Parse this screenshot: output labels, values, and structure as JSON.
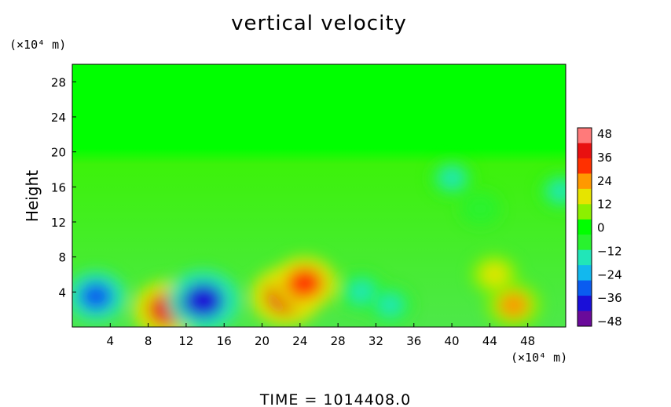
{
  "chart_data": {
    "type": "heatmap",
    "title": "vertical velocity",
    "ylabel": "Height",
    "xlabel": "",
    "x_unit": "(×10⁴ m)",
    "y_unit": "(×10⁴ m)",
    "footer": "TIME  =  1014408.0",
    "xlim": [
      0,
      52
    ],
    "ylim": [
      0,
      30
    ],
    "x_ticks": [
      "4",
      "8",
      "12",
      "16",
      "20",
      "24",
      "28",
      "32",
      "36",
      "40",
      "44",
      "48"
    ],
    "y_ticks": [
      "4",
      "8",
      "12",
      "16",
      "20",
      "24",
      "28"
    ],
    "colorbar": {
      "ticks": [
        "48",
        "36",
        "24",
        "12",
        "0",
        "−12",
        "−24",
        "−36",
        "−48"
      ],
      "range": [
        -48,
        48
      ],
      "colors": [
        "#6a0a9a",
        "#1a0fd8",
        "#0a5cf0",
        "#12b8ee",
        "#21e6b8",
        "#29f22e",
        "#00ff00",
        "#8cf000",
        "#e6e400",
        "#ff9900",
        "#ff3000",
        "#e81010",
        "#ff7a7a"
      ]
    },
    "features": [
      {
        "x": 2.5,
        "y": 3.5,
        "value": -30
      },
      {
        "x": 10.0,
        "y": 2.0,
        "value": 38
      },
      {
        "x": 13.8,
        "y": 3.0,
        "value": -42
      },
      {
        "x": 22.5,
        "y": 3.5,
        "value": 40
      },
      {
        "x": 24.5,
        "y": 5.0,
        "value": 34
      },
      {
        "x": 30.5,
        "y": 4.0,
        "value": -18
      },
      {
        "x": 33.5,
        "y": 2.5,
        "value": -16
      },
      {
        "x": 44.5,
        "y": 6.0,
        "value": 18
      },
      {
        "x": 46.5,
        "y": 2.5,
        "value": 26
      },
      {
        "x": 40.0,
        "y": 17.0,
        "value": -14
      },
      {
        "x": 43.0,
        "y": 13.5,
        "value": -12
      },
      {
        "x": 51.5,
        "y": 15.5,
        "value": -14
      }
    ]
  }
}
